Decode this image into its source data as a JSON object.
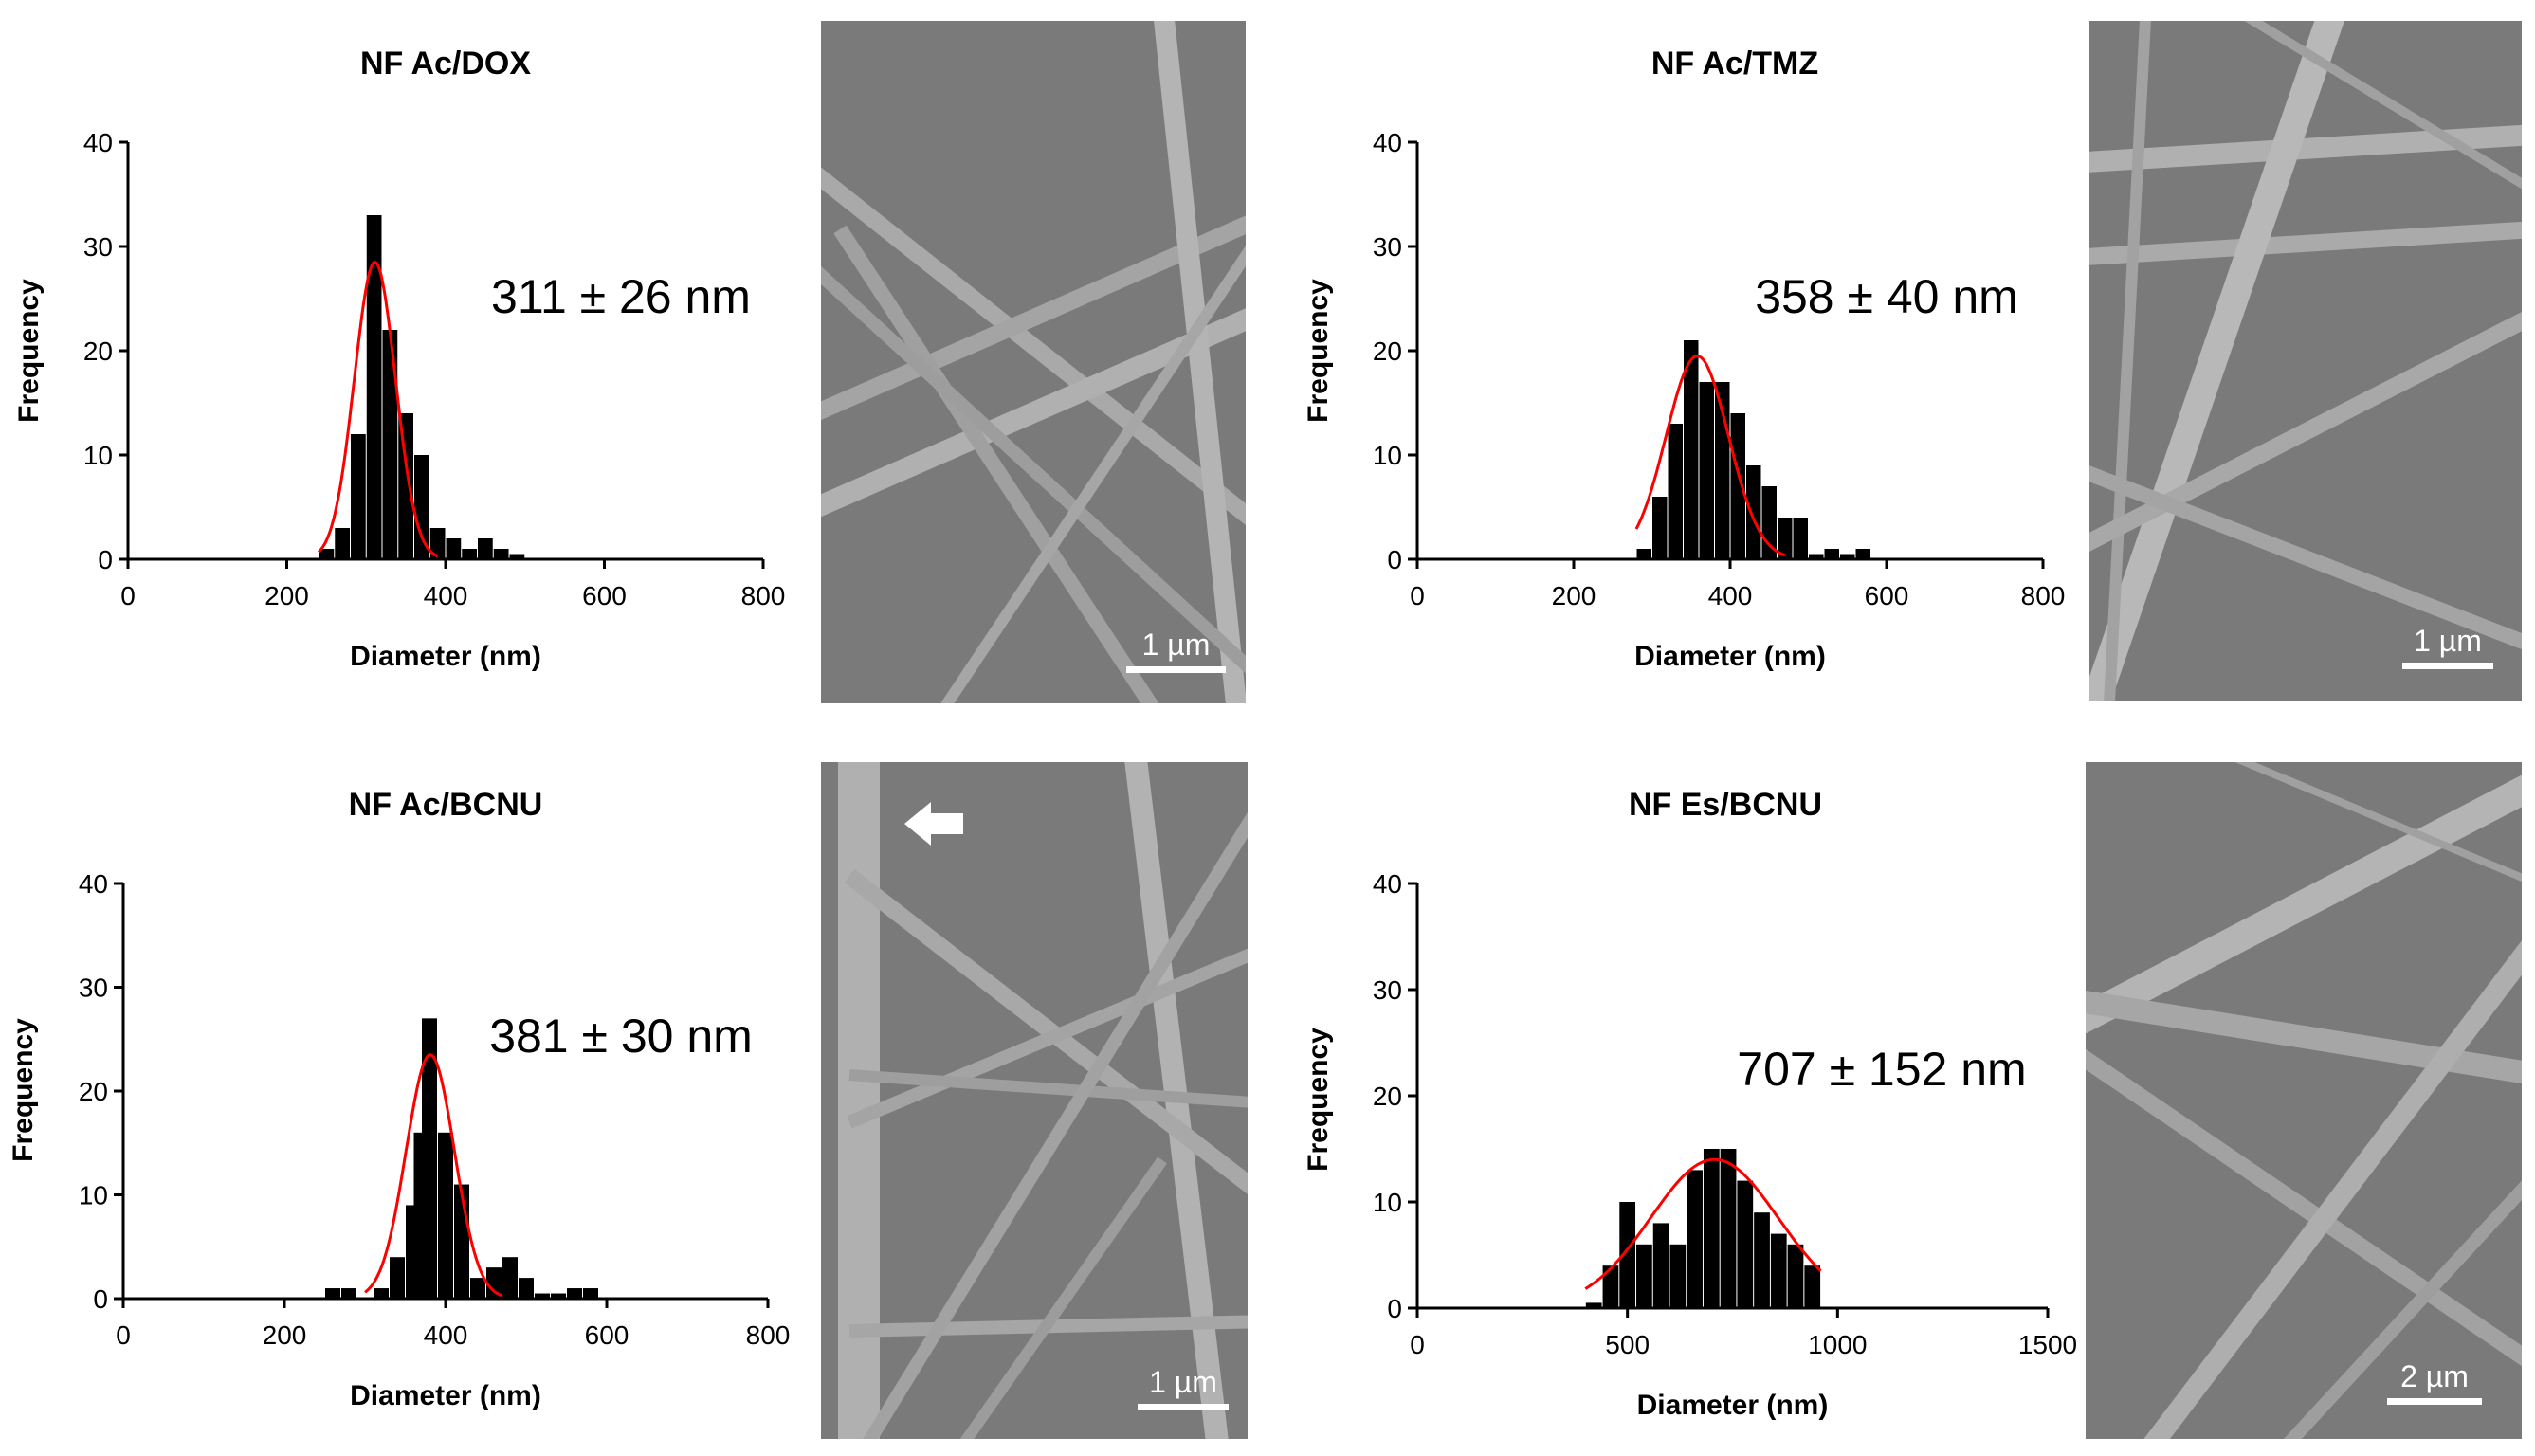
{
  "colors": {
    "bar": "#000000",
    "fit": "#ff0000",
    "axis": "#000000",
    "sem_bg": "#7a7a7a",
    "fiber": "#a8a8a8"
  },
  "chart_data": [
    {
      "id": "dox",
      "type": "bar",
      "title": "NF Ac/DOX",
      "xlabel": "Diameter (nm)",
      "ylabel": "Frequency",
      "xlim": [
        0,
        800
      ],
      "ylim": [
        0,
        40
      ],
      "xticks": [
        "0",
        "200",
        "400",
        "600",
        "800"
      ],
      "yticks": [
        "0",
        "10",
        "20",
        "30",
        "40"
      ],
      "bin_width": 20,
      "bins": [
        {
          "x": 250,
          "y": 1
        },
        {
          "x": 270,
          "y": 3
        },
        {
          "x": 290,
          "y": 12
        },
        {
          "x": 310,
          "y": 33
        },
        {
          "x": 330,
          "y": 22
        },
        {
          "x": 350,
          "y": 14
        },
        {
          "x": 370,
          "y": 10
        },
        {
          "x": 390,
          "y": 3
        },
        {
          "x": 410,
          "y": 2
        },
        {
          "x": 430,
          "y": 1
        },
        {
          "x": 450,
          "y": 2
        },
        {
          "x": 470,
          "y": 1
        },
        {
          "x": 490,
          "y": 0.5
        }
      ],
      "fit": {
        "type": "gaussian",
        "mean": 311,
        "sd": 26,
        "peak": 28.5,
        "x_range": [
          240,
          390
        ]
      },
      "annotation": "311 ± 26 nm",
      "sem_scale": "1 µm"
    },
    {
      "id": "tmz",
      "type": "bar",
      "title": "NF Ac/TMZ",
      "xlabel": "Diameter (nm)",
      "ylabel": "Frequency",
      "xlim": [
        0,
        800
      ],
      "ylim": [
        0,
        40
      ],
      "xticks": [
        "0",
        "200",
        "400",
        "600",
        "800"
      ],
      "yticks": [
        "0",
        "10",
        "20",
        "30",
        "40"
      ],
      "bin_width": 20,
      "bins": [
        {
          "x": 290,
          "y": 1
        },
        {
          "x": 310,
          "y": 6
        },
        {
          "x": 330,
          "y": 13
        },
        {
          "x": 350,
          "y": 21
        },
        {
          "x": 370,
          "y": 17
        },
        {
          "x": 390,
          "y": 17
        },
        {
          "x": 410,
          "y": 14
        },
        {
          "x": 430,
          "y": 9
        },
        {
          "x": 450,
          "y": 7
        },
        {
          "x": 470,
          "y": 4
        },
        {
          "x": 490,
          "y": 4
        },
        {
          "x": 510,
          "y": 0.5
        },
        {
          "x": 530,
          "y": 1
        },
        {
          "x": 550,
          "y": 0.5
        },
        {
          "x": 570,
          "y": 1
        }
      ],
      "fit": {
        "type": "gaussian",
        "mean": 358,
        "sd": 40,
        "peak": 19.5,
        "x_range": [
          280,
          470
        ]
      },
      "annotation": "358 ± 40 nm",
      "sem_scale": "1 µm"
    },
    {
      "id": "bcnu_ac",
      "type": "bar",
      "title": "NF Ac/BCNU",
      "xlabel": "Diameter (nm)",
      "ylabel": "Frequency",
      "xlim": [
        0,
        800
      ],
      "ylim": [
        0,
        40
      ],
      "xticks": [
        "0",
        "200",
        "400",
        "600",
        "800"
      ],
      "yticks": [
        "0",
        "10",
        "20",
        "30",
        "40"
      ],
      "bin_width": 20,
      "bins": [
        {
          "x": 260,
          "y": 1
        },
        {
          "x": 280,
          "y": 1
        },
        {
          "x": 320,
          "y": 1
        },
        {
          "x": 340,
          "y": 4
        },
        {
          "x": 360,
          "y": 9
        },
        {
          "x": 370,
          "y": 16
        },
        {
          "x": 380,
          "y": 27
        },
        {
          "x": 400,
          "y": 16
        },
        {
          "x": 420,
          "y": 11
        },
        {
          "x": 440,
          "y": 2
        },
        {
          "x": 460,
          "y": 3
        },
        {
          "x": 480,
          "y": 4
        },
        {
          "x": 500,
          "y": 2
        },
        {
          "x": 520,
          "y": 0.5
        },
        {
          "x": 540,
          "y": 0.5
        },
        {
          "x": 560,
          "y": 1
        },
        {
          "x": 580,
          "y": 1
        }
      ],
      "fit": {
        "type": "gaussian",
        "mean": 381,
        "sd": 30,
        "peak": 23.5,
        "x_range": [
          300,
          470
        ]
      },
      "annotation": "381 ± 30 nm",
      "sem_scale": "1 µm"
    },
    {
      "id": "bcnu_es",
      "type": "bar",
      "title": "NF Es/BCNU",
      "xlabel": "Diameter (nm)",
      "ylabel": "Frequency",
      "xlim": [
        0,
        1500
      ],
      "ylim": [
        0,
        40
      ],
      "xticks": [
        "0",
        "500",
        "1000",
        "1500"
      ],
      "yticks": [
        "0",
        "10",
        "20",
        "30",
        "40"
      ],
      "bin_width": 40,
      "bins": [
        {
          "x": 420,
          "y": 0.5
        },
        {
          "x": 460,
          "y": 4
        },
        {
          "x": 500,
          "y": 10
        },
        {
          "x": 540,
          "y": 6
        },
        {
          "x": 580,
          "y": 8
        },
        {
          "x": 620,
          "y": 6
        },
        {
          "x": 660,
          "y": 13
        },
        {
          "x": 700,
          "y": 15
        },
        {
          "x": 740,
          "y": 15
        },
        {
          "x": 780,
          "y": 12
        },
        {
          "x": 820,
          "y": 9
        },
        {
          "x": 860,
          "y": 7
        },
        {
          "x": 900,
          "y": 6
        },
        {
          "x": 940,
          "y": 4
        }
      ],
      "fit": {
        "type": "gaussian",
        "mean": 707,
        "sd": 152,
        "peak": 14,
        "x_range": [
          400,
          960
        ]
      },
      "annotation": "707 ± 152 nm",
      "sem_scale": "2 µm"
    }
  ]
}
